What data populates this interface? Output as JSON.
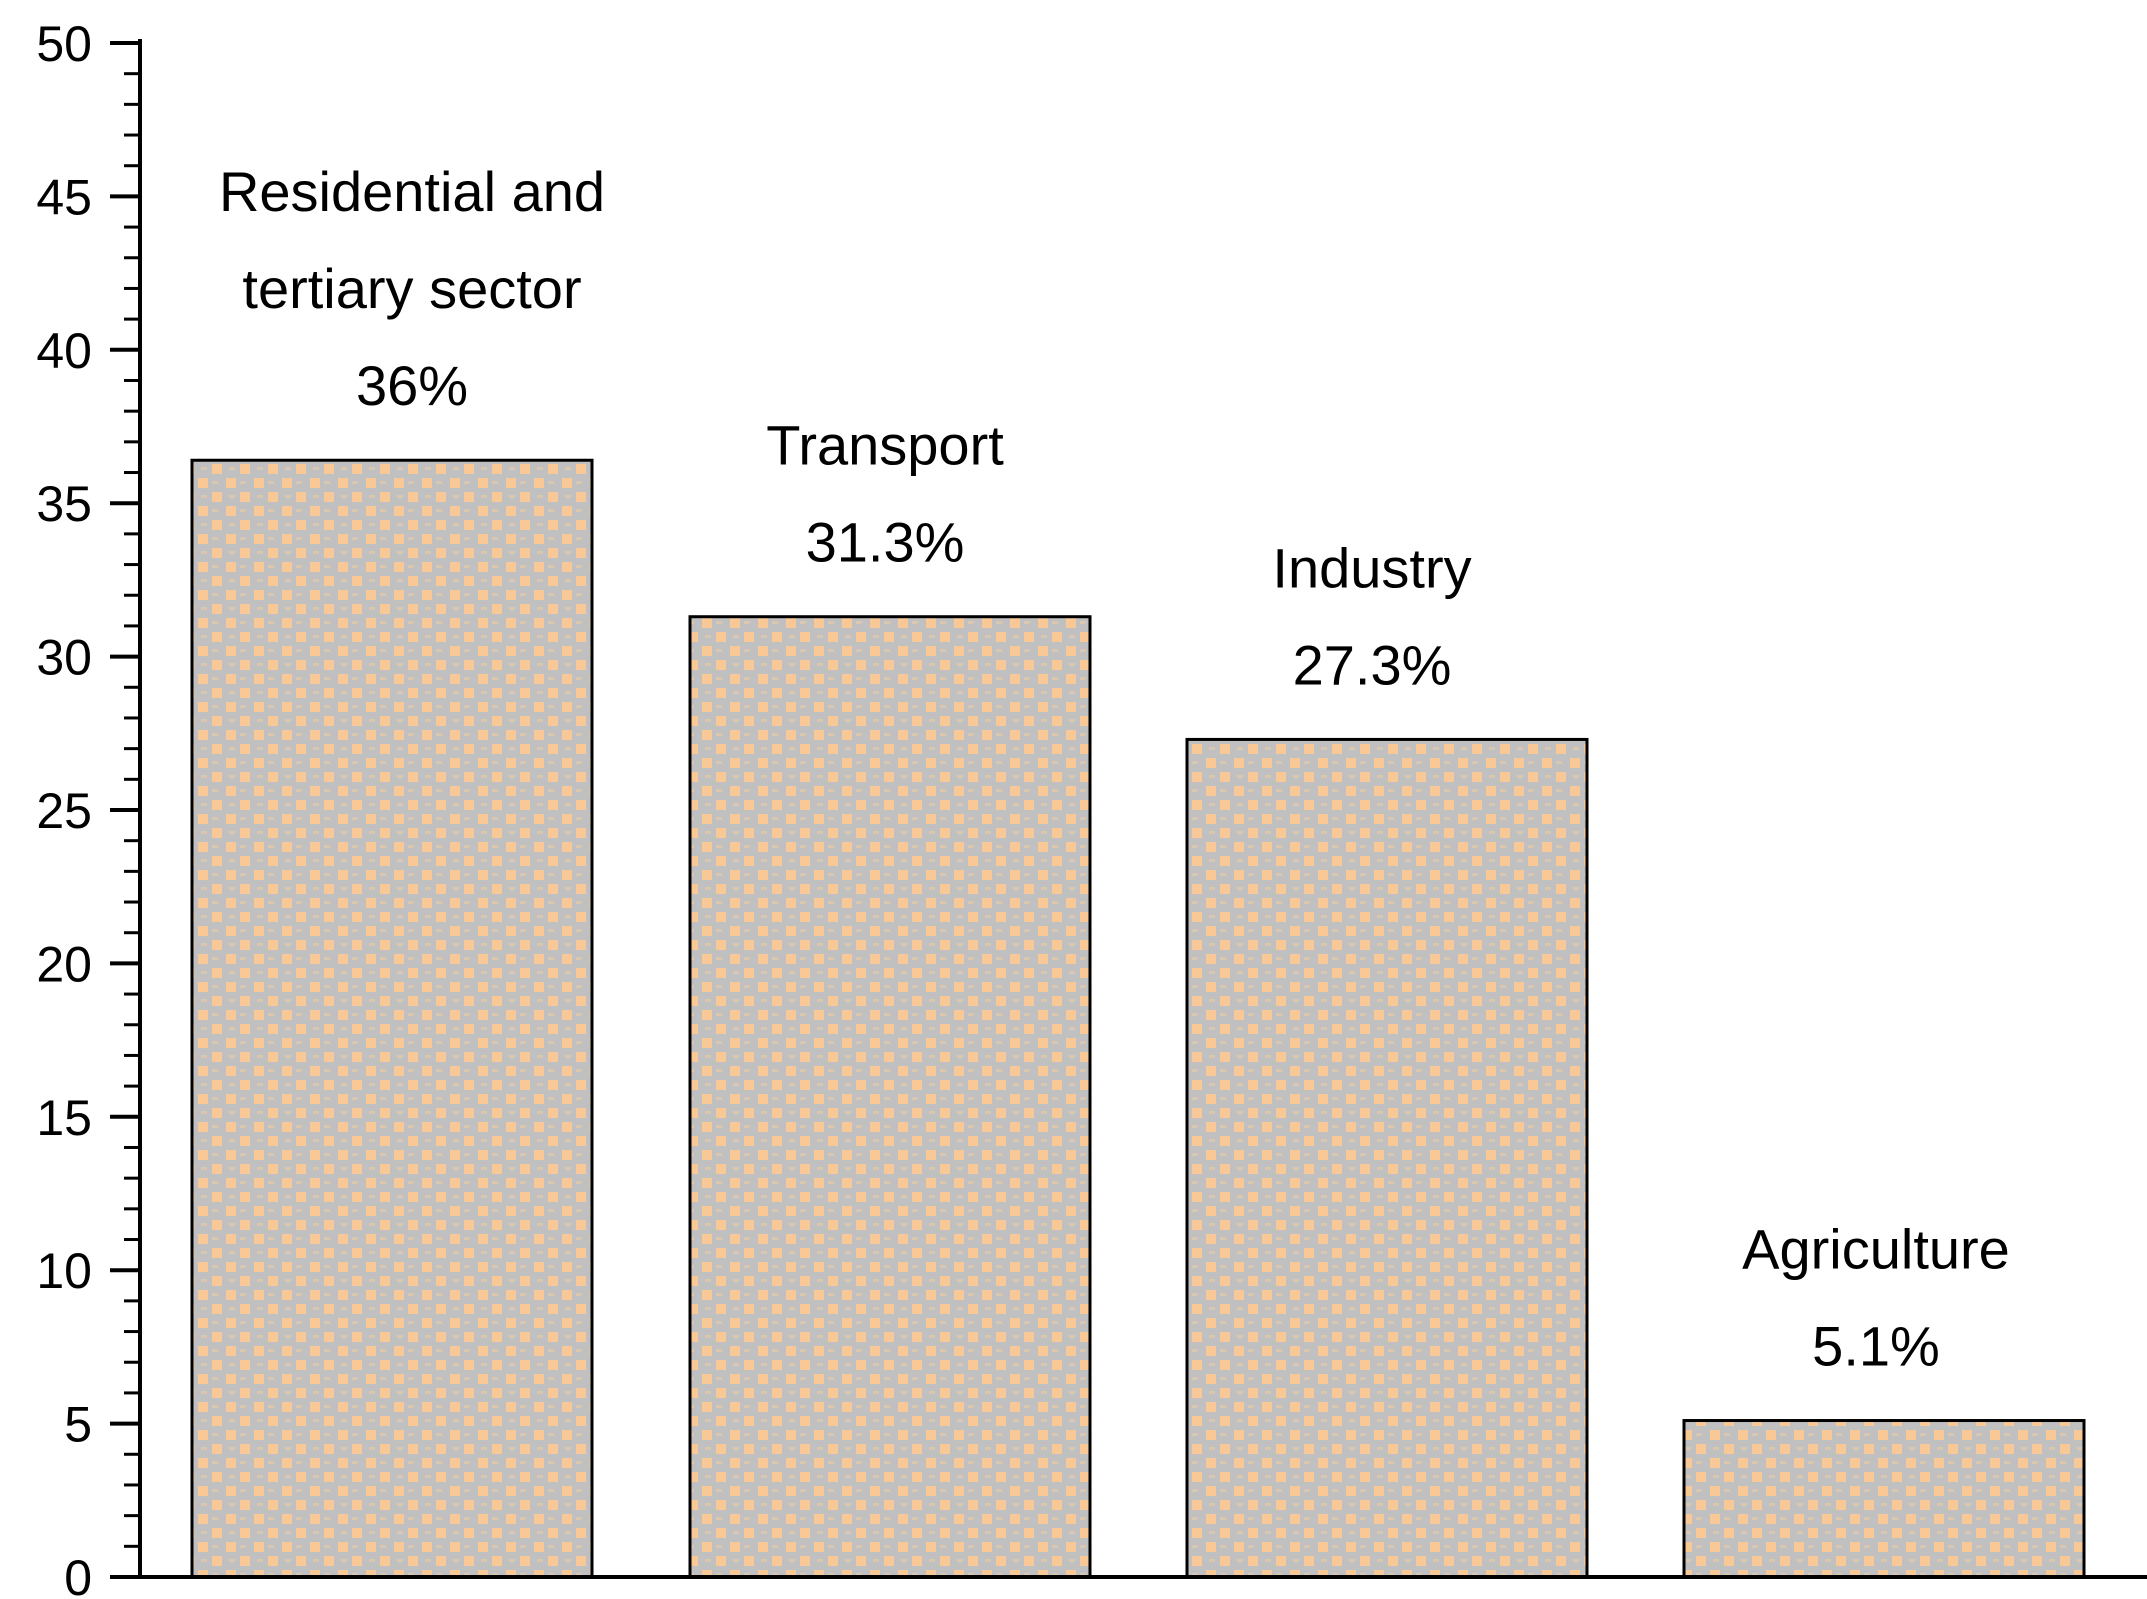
{
  "chart_data": {
    "type": "bar",
    "title": "",
    "xlabel": "",
    "ylabel": "",
    "categories": [
      "Residential and tertiary sector",
      "Transport",
      "Industry",
      "Agriculture"
    ],
    "values": [
      36.4,
      31.3,
      27.3,
      5.1
    ],
    "label_lines": [
      [
        "Residential and",
        "tertiary sector",
        "36%"
      ],
      [
        "Transport",
        "31.3%"
      ],
      [
        "Industry",
        "27.3%"
      ],
      [
        "Agriculture",
        "5.1%"
      ]
    ],
    "ylim": [
      0,
      50
    ],
    "yticks": [
      0,
      5,
      10,
      15,
      20,
      25,
      30,
      35,
      40,
      45,
      50
    ],
    "grid": false,
    "legend": "none",
    "colors": {
      "bar_fill": "#c0c0c0",
      "pattern_accent": "#f8c896",
      "bar_stroke": "#000000",
      "axis": "#000000"
    }
  }
}
